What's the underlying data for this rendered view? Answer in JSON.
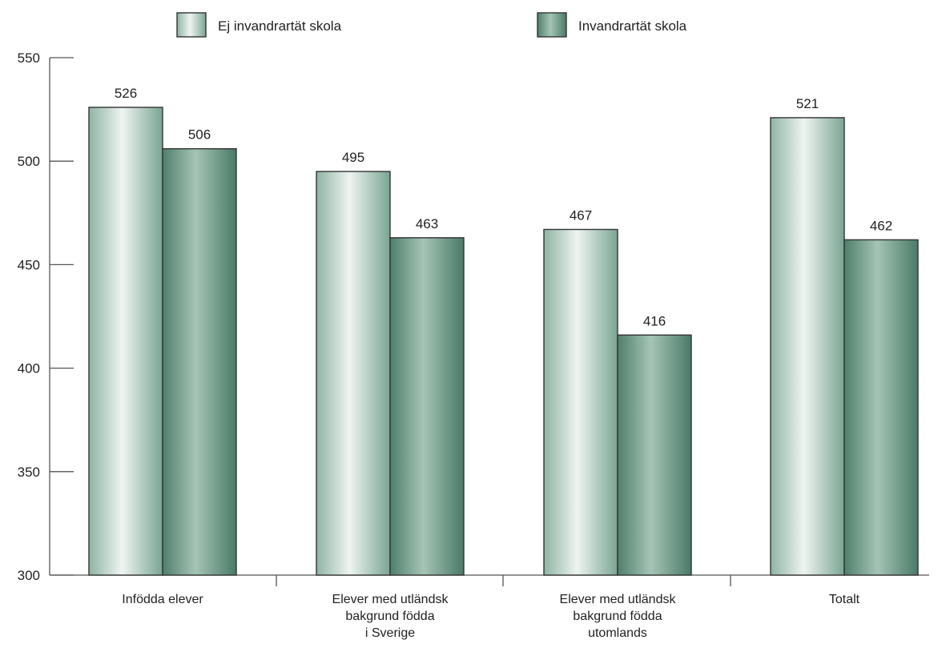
{
  "chart_data": {
    "type": "bar",
    "title": "",
    "xlabel": "",
    "ylabel": "",
    "ylim": [
      300,
      550
    ],
    "yticks": [
      300,
      350,
      400,
      450,
      500,
      550
    ],
    "grid": false,
    "legend_position": "top",
    "categories": [
      [
        "Infödda elever"
      ],
      [
        "Elever med utländsk",
        "bakgrund födda",
        "i Sverige"
      ],
      [
        "Elever med utländsk",
        "bakgrund födda",
        "utomlands"
      ],
      [
        "Totalt"
      ]
    ],
    "series": [
      {
        "name": "Ej invandrartät skola",
        "values": [
          526,
          495,
          467,
          521
        ],
        "color": "#c8ddd3"
      },
      {
        "name": "Invandrartät skola",
        "values": [
          506,
          463,
          416,
          462
        ],
        "color": "#6f9c89"
      }
    ]
  }
}
